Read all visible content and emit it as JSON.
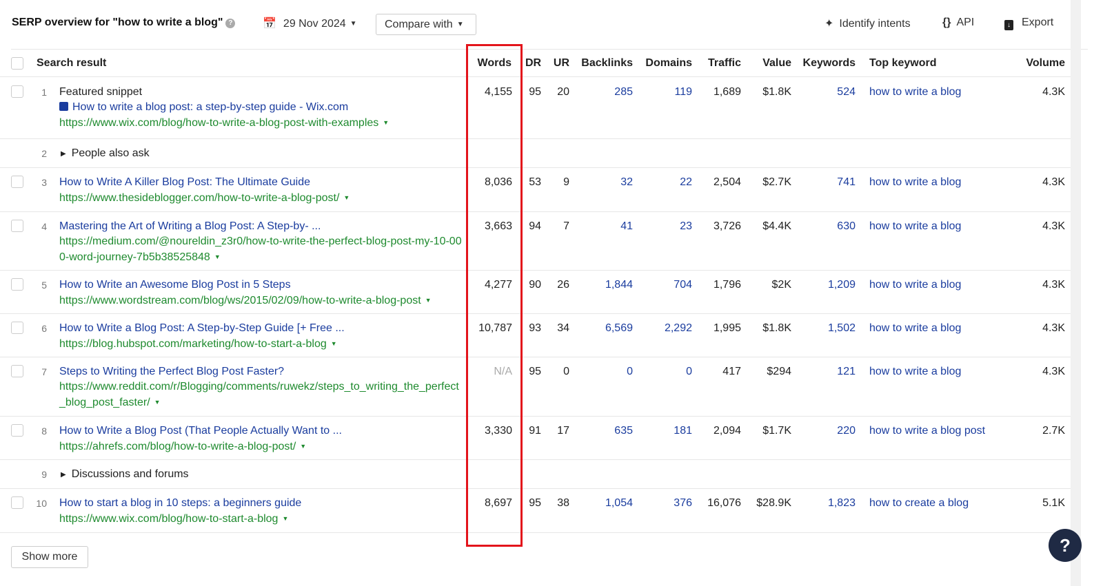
{
  "header": {
    "title": "SERP overview for \"how to write a blog\"",
    "date": "29 Nov 2024",
    "compare": "Compare with",
    "identify": "Identify intents",
    "api": "API",
    "export": "Export"
  },
  "columns": {
    "result": "Search result",
    "words": "Words",
    "dr": "DR",
    "ur": "UR",
    "backlinks": "Backlinks",
    "domains": "Domains",
    "traffic": "Traffic",
    "value": "Value",
    "keywords": "Keywords",
    "top_keyword": "Top keyword",
    "volume": "Volume"
  },
  "rows": [
    {
      "n": "1",
      "label": "Featured snippet",
      "title": "How to write a blog post: a step-by-step guide - Wix.com",
      "url": "https://www.wix.com/blog/how-to-write-a-blog-post-with-examples",
      "words": "4,155",
      "dr": "95",
      "ur": "20",
      "backlinks": "285",
      "domains": "119",
      "traffic": "1,689",
      "value": "$1.8K",
      "keywords": "524",
      "top_keyword": "how to write a blog",
      "volume": "4.3K"
    },
    {
      "n": "2",
      "group": "People also ask"
    },
    {
      "n": "3",
      "title": "How to Write A Killer Blog Post: The Ultimate Guide",
      "url": "https://www.thesideblogger.com/how-to-write-a-blog-post/",
      "words": "8,036",
      "dr": "53",
      "ur": "9",
      "backlinks": "32",
      "domains": "22",
      "traffic": "2,504",
      "value": "$2.7K",
      "keywords": "741",
      "top_keyword": "how to write a blog",
      "volume": "4.3K"
    },
    {
      "n": "4",
      "title": "Mastering the Art of Writing a Blog Post: A Step-by- ...",
      "url": "https://medium.com/@noureldin_z3r0/how-to-write-the-perfect-blog-post-my-10-000-word-journey-7b5b38525848",
      "words": "3,663",
      "dr": "94",
      "ur": "7",
      "backlinks": "41",
      "domains": "23",
      "traffic": "3,726",
      "value": "$4.4K",
      "keywords": "630",
      "top_keyword": "how to write a blog",
      "volume": "4.3K"
    },
    {
      "n": "5",
      "title": "How to Write an Awesome Blog Post in 5 Steps",
      "url": "https://www.wordstream.com/blog/ws/2015/02/09/how-to-write-a-blog-post",
      "words": "4,277",
      "dr": "90",
      "ur": "26",
      "backlinks": "1,844",
      "domains": "704",
      "traffic": "1,796",
      "value": "$2K",
      "keywords": "1,209",
      "top_keyword": "how to write a blog",
      "volume": "4.3K"
    },
    {
      "n": "6",
      "title": "How to Write a Blog Post: A Step-by-Step Guide [+ Free ...",
      "url": "https://blog.hubspot.com/marketing/how-to-start-a-blog",
      "words": "10,787",
      "dr": "93",
      "ur": "34",
      "backlinks": "6,569",
      "domains": "2,292",
      "traffic": "1,995",
      "value": "$1.8K",
      "keywords": "1,502",
      "top_keyword": "how to write a blog",
      "volume": "4.3K"
    },
    {
      "n": "7",
      "title": "Steps to Writing the Perfect Blog Post Faster?",
      "url": "https://www.reddit.com/r/Blogging/comments/ruwekz/steps_to_writing_the_perfect_blog_post_faster/",
      "words": "N/A",
      "dr": "95",
      "ur": "0",
      "backlinks": "0",
      "domains": "0",
      "traffic": "417",
      "value": "$294",
      "keywords": "121",
      "top_keyword": "how to write a blog",
      "volume": "4.3K"
    },
    {
      "n": "8",
      "title": "How to Write a Blog Post (That People Actually Want to ...",
      "url": "https://ahrefs.com/blog/how-to-write-a-blog-post/",
      "words": "3,330",
      "dr": "91",
      "ur": "17",
      "backlinks": "635",
      "domains": "181",
      "traffic": "2,094",
      "value": "$1.7K",
      "keywords": "220",
      "top_keyword": "how to write a blog post",
      "volume": "2.7K"
    },
    {
      "n": "9",
      "group": "Discussions and forums"
    },
    {
      "n": "10",
      "title": "How to start a blog in 10 steps: a beginners guide",
      "url": "https://www.wix.com/blog/how-to-start-a-blog",
      "words": "8,697",
      "dr": "95",
      "ur": "38",
      "backlinks": "1,054",
      "domains": "376",
      "traffic": "16,076",
      "value": "$28.9K",
      "keywords": "1,823",
      "top_keyword": "how to create a blog",
      "volume": "5.1K"
    }
  ],
  "show_more": "Show more",
  "help": "?"
}
